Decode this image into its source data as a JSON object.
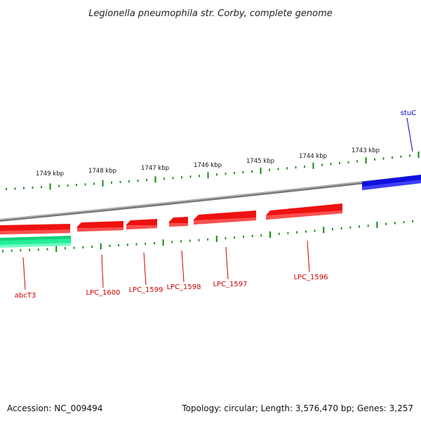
{
  "title": "Legionella pneumophila str. Corby, complete genome",
  "footer": {
    "accession": "Accession: NC_009494",
    "summary": "Topology: circular; Length: 3,576,470 bp; Genes: 3,257"
  },
  "colors": {
    "backbone": "#888888",
    "tick": "#118811",
    "reverse_gene": "#ee1111",
    "reverse_gene_label": "#cc0000",
    "forward_gene": "#1010dd",
    "forward_gene_label": "#0000cc",
    "rna_gene": "#22ee99"
  },
  "scale_labels": [
    "1749 kbp",
    "1748 kbp",
    "1747 kbp",
    "1746 kbp",
    "1745 kbp",
    "1744 kbp",
    "1743 kbp"
  ],
  "genes": [
    {
      "name": "stuC",
      "type": "forward"
    },
    {
      "name": "LPC_1596",
      "type": "reverse"
    },
    {
      "name": "LPC_1597",
      "type": "reverse"
    },
    {
      "name": "LPC_1598",
      "type": "reverse"
    },
    {
      "name": "LPC_1599",
      "type": "reverse"
    },
    {
      "name": "LPC_1600",
      "type": "reverse"
    },
    {
      "name": "abcT3",
      "type": "rna"
    }
  ]
}
